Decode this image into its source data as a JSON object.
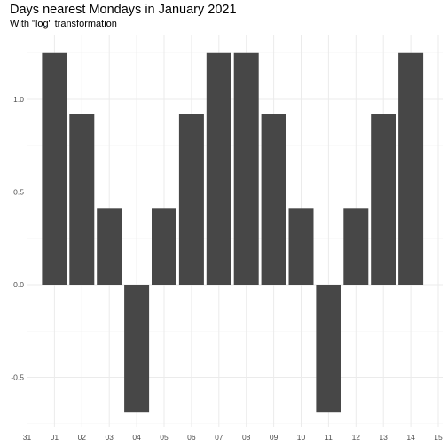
{
  "chart_data": {
    "type": "bar",
    "title": "Days nearest Mondays in January 2021",
    "subtitle": "With \"log\" transformation",
    "xlabel": "",
    "ylabel": "",
    "categories": [
      "01",
      "02",
      "03",
      "04",
      "05",
      "06",
      "07",
      "08",
      "09",
      "10",
      "11",
      "12",
      "13",
      "14"
    ],
    "x_tick_labels": [
      "31",
      "01",
      "02",
      "03",
      "04",
      "05",
      "06",
      "07",
      "08",
      "09",
      "10",
      "11",
      "12",
      "13",
      "14",
      "15"
    ],
    "values": [
      1.25,
      0.92,
      0.41,
      -0.69,
      0.41,
      0.92,
      1.25,
      1.25,
      0.92,
      0.41,
      -0.69,
      0.41,
      0.92,
      1.25
    ],
    "y_ticks": [
      -0.5,
      0.0,
      0.5,
      1.0
    ],
    "y_tick_labels": [
      "-0.5",
      "0.0",
      "0.5",
      "1.0"
    ],
    "ylim": [
      -0.75,
      1.31
    ],
    "grid": true,
    "legend": "none",
    "colors": {
      "bar": "#474747",
      "grid_major": "#ebebeb",
      "grid_minor": "#f5f5f5",
      "tick_text": "#4d4d4d"
    }
  }
}
